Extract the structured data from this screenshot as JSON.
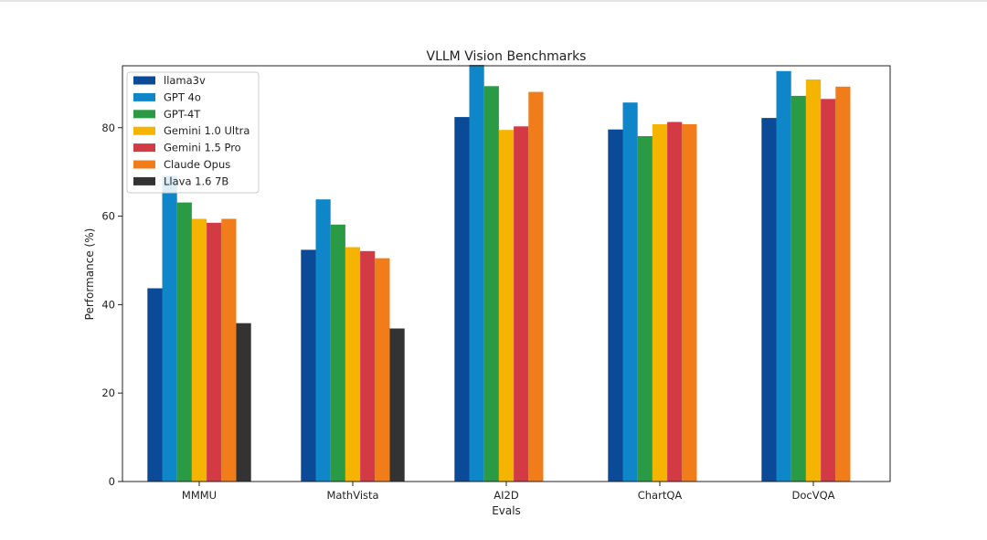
{
  "chart_data": {
    "type": "bar",
    "title": "VLLM Vision Benchmarks",
    "xlabel": "Evals",
    "ylabel": "Performance (%)",
    "ylim": [
      0,
      94
    ],
    "yticks": [
      0,
      20,
      40,
      60,
      80
    ],
    "categories": [
      "MMMU",
      "MathVista",
      "AI2D",
      "ChartQA",
      "DocVQA"
    ],
    "legend_position": "top-left",
    "grid": false,
    "series": [
      {
        "name": "llama3v",
        "color": "#0a4a96",
        "values": [
          43.7,
          52.4,
          82.4,
          79.6,
          82.2
        ]
      },
      {
        "name": "GPT 4o",
        "color": "#0e86c8",
        "values": [
          69.1,
          63.8,
          94.2,
          85.7,
          92.8
        ]
      },
      {
        "name": "GPT-4T",
        "color": "#2a9a44",
        "values": [
          63.1,
          58.1,
          89.4,
          78.1,
          87.2
        ]
      },
      {
        "name": "Gemini 1.0 Ultra",
        "color": "#f4b400",
        "values": [
          59.4,
          53.0,
          79.5,
          80.8,
          90.9
        ]
      },
      {
        "name": "Gemini 1.5 Pro",
        "color": "#d23a44",
        "values": [
          58.5,
          52.1,
          80.3,
          81.3,
          86.5
        ]
      },
      {
        "name": "Claude Opus",
        "color": "#f07c1a",
        "values": [
          59.4,
          50.5,
          88.1,
          80.8,
          89.3
        ]
      },
      {
        "name": "Llava 1.6 7B",
        "color": "#333333",
        "values": [
          35.8,
          34.6,
          null,
          null,
          null
        ]
      }
    ]
  }
}
